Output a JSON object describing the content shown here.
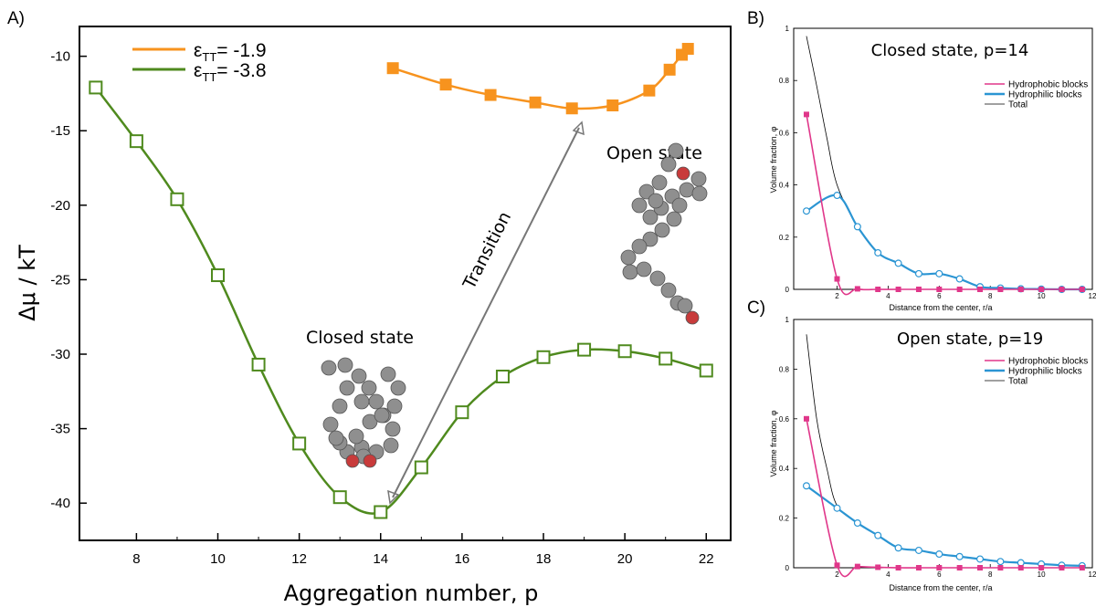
{
  "panel_labels": {
    "a": "A)",
    "b": "B)",
    "c": "C)"
  },
  "colors": {
    "orange": "#f7931e",
    "green": "#4f8a1e",
    "pink": "#e0378a",
    "blue": "#2b95d3",
    "black": "#000000",
    "bead": "#8f8f8f",
    "head": "#c83b3b"
  },
  "annotations": {
    "closed": "Closed state",
    "open": "Open state",
    "transition": "Transition"
  },
  "chart_data": [
    {
      "type": "line",
      "xlabel": "Aggregation number, p",
      "ylabel": "Δμ / kT",
      "xlim": [
        6.6,
        22.6
      ],
      "ylim": [
        -42.5,
        -8
      ],
      "xticks": [
        8,
        10,
        12,
        14,
        16,
        18,
        20,
        22
      ],
      "yticks": [
        -10,
        -15,
        -20,
        -25,
        -30,
        -35,
        -40
      ],
      "legend_position": "top-left",
      "series": [
        {
          "name": "ε_TT = -1.9",
          "legend_base": "ε",
          "legend_sub": "TT",
          "legend_value": "= -1.9",
          "marker": "filled-square",
          "color": "#f7931e",
          "x": [
            14.3,
            15.6,
            16.7,
            17.8,
            18.7,
            19.7,
            20.6,
            21.1,
            21.4,
            21.55
          ],
          "y": [
            -10.8,
            -11.9,
            -12.6,
            -13.1,
            -13.5,
            -13.3,
            -12.3,
            -10.9,
            -9.9,
            -9.5
          ]
        },
        {
          "name": "ε_TT = -3.8",
          "legend_base": "ε",
          "legend_sub": "TT",
          "legend_value": "= -3.8",
          "marker": "open-square",
          "color": "#4f8a1e",
          "x": [
            7,
            8,
            9,
            10,
            11,
            12,
            13,
            14,
            15,
            16,
            17,
            18,
            19,
            20,
            21,
            22
          ],
          "y": [
            -12.1,
            -15.7,
            -19.6,
            -24.7,
            -30.7,
            -36.0,
            -39.6,
            -40.6,
            -37.6,
            -33.9,
            -31.5,
            -30.2,
            -29.7,
            -29.8,
            -30.3,
            -31.1
          ]
        }
      ]
    },
    {
      "type": "line",
      "title": "Closed state, p=14",
      "xlabel": "Distance from the center, r/a",
      "ylabel": "Volume fraction, φ",
      "xlim": [
        0.3,
        12
      ],
      "ylim": [
        0,
        1
      ],
      "xticks": [
        2,
        4,
        6,
        8,
        10,
        12
      ],
      "yticks": [
        0,
        0.2,
        0.4,
        0.6,
        0.8,
        1
      ],
      "legend_position": "top-right",
      "series": [
        {
          "name": "Hydrophobic blocks",
          "color": "#e0378a",
          "marker": "filled-square",
          "x": [
            0.8,
            2.0,
            2.8,
            3.6,
            4.4,
            5.2,
            6.0,
            6.8,
            7.6,
            8.4,
            9.2,
            10.0,
            10.8,
            11.6
          ],
          "y": [
            0.67,
            0.04,
            0.002,
            0.0,
            0.0,
            0.0,
            0.0,
            0.0,
            0.0,
            0.0,
            0.0,
            0.0,
            0.0,
            0.0
          ]
        },
        {
          "name": "Hydrophilic blocks",
          "color": "#2b95d3",
          "marker": "open-circle",
          "x": [
            0.8,
            2.0,
            2.8,
            3.6,
            4.4,
            5.2,
            6.0,
            6.8,
            7.6,
            8.4,
            9.2,
            10.0,
            10.8,
            11.6
          ],
          "y": [
            0.3,
            0.36,
            0.24,
            0.14,
            0.1,
            0.06,
            0.06,
            0.04,
            0.01,
            0.005,
            0.002,
            0.001,
            0.0,
            0.0
          ]
        },
        {
          "name": "Total",
          "color": "#000000",
          "marker": "none",
          "x": [
            0.8,
            1.2,
            1.6,
            2.0,
            2.8,
            3.6,
            4.4,
            5.2,
            6.0,
            6.8,
            7.6,
            8.4,
            9.2,
            10.0,
            10.8,
            11.6
          ],
          "y": [
            0.97,
            0.78,
            0.58,
            0.4,
            0.24,
            0.14,
            0.1,
            0.06,
            0.06,
            0.04,
            0.01,
            0.005,
            0.002,
            0.001,
            0.0,
            0.0
          ]
        }
      ]
    },
    {
      "type": "line",
      "title": "Open state, p=19",
      "xlabel": "Distance from the center, r/a",
      "ylabel": "Volume fraction, φ",
      "xlim": [
        0.3,
        12
      ],
      "ylim": [
        0,
        1
      ],
      "xticks": [
        2,
        4,
        6,
        8,
        10,
        12
      ],
      "yticks": [
        0,
        0.2,
        0.4,
        0.6,
        0.8,
        1
      ],
      "legend_position": "top-right",
      "series": [
        {
          "name": "Hydrophobic blocks",
          "color": "#e0378a",
          "marker": "filled-square",
          "x": [
            0.8,
            2.0,
            2.8,
            3.6,
            4.4,
            5.2,
            6.0,
            6.8,
            7.6,
            8.4,
            9.2,
            10.0,
            10.8,
            11.6
          ],
          "y": [
            0.6,
            0.01,
            0.005,
            0.002,
            0.0,
            0.0,
            0.0,
            0.0,
            0.0,
            0.0,
            0.0,
            0.0,
            0.0,
            0.0
          ]
        },
        {
          "name": "Hydrophilic blocks",
          "color": "#2b95d3",
          "marker": "open-circle",
          "x": [
            0.8,
            2.0,
            2.8,
            3.6,
            4.4,
            5.2,
            6.0,
            6.8,
            7.6,
            8.4,
            9.2,
            10.0,
            10.8,
            11.6
          ],
          "y": [
            0.33,
            0.24,
            0.18,
            0.13,
            0.08,
            0.07,
            0.055,
            0.045,
            0.035,
            0.025,
            0.02,
            0.015,
            0.01,
            0.008
          ]
        },
        {
          "name": "Total",
          "color": "#000000",
          "marker": "none",
          "x": [
            0.8,
            1.2,
            1.6,
            2.0,
            2.8,
            3.6,
            4.4,
            5.2,
            6.0,
            6.8,
            7.6,
            8.4,
            9.2,
            10.0,
            10.8,
            11.6
          ],
          "y": [
            0.94,
            0.6,
            0.4,
            0.25,
            0.18,
            0.13,
            0.08,
            0.07,
            0.055,
            0.045,
            0.035,
            0.025,
            0.02,
            0.015,
            0.01,
            0.008
          ]
        }
      ]
    }
  ]
}
